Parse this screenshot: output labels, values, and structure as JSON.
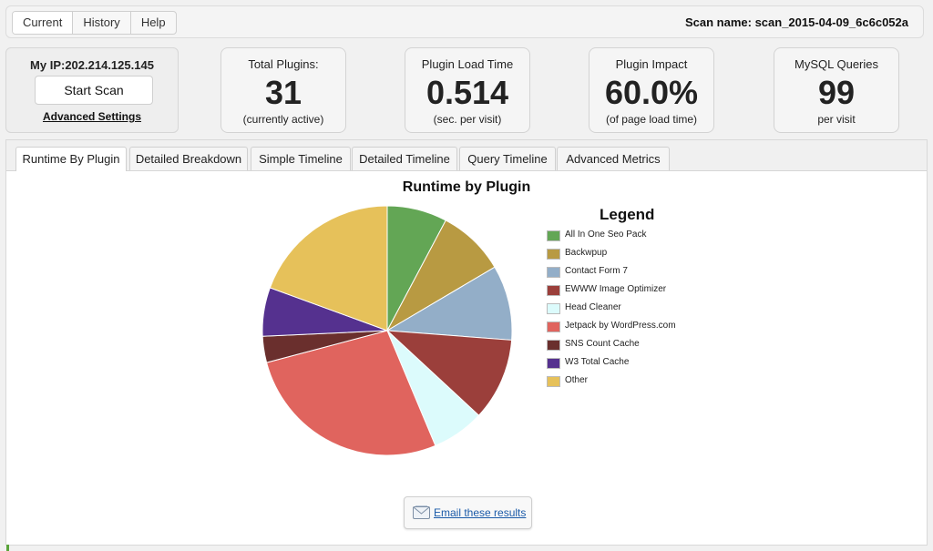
{
  "nav": {
    "items": [
      {
        "label": "Current",
        "active": true
      },
      {
        "label": "History",
        "active": false
      },
      {
        "label": "Help",
        "active": false
      }
    ]
  },
  "scan": {
    "name_label": "Scan name: scan_2015-04-09_6c6c052a"
  },
  "ipcard": {
    "ip_label": "My IP:202.214.125.145",
    "start_label": "Start Scan",
    "advanced_label": "Advanced Settings"
  },
  "stats": [
    {
      "title": "Total Plugins:",
      "value": "31",
      "sub": "(currently active)"
    },
    {
      "title": "Plugin Load Time",
      "value": "0.514",
      "sub": "(sec. per visit)"
    },
    {
      "title": "Plugin Impact",
      "value": "60.0%",
      "sub": "(of page load time)"
    },
    {
      "title": "MySQL Queries",
      "value": "99",
      "sub": "per visit"
    }
  ],
  "tabs": [
    {
      "label": "Runtime By Plugin",
      "active": true
    },
    {
      "label": "Detailed Breakdown",
      "active": false
    },
    {
      "label": "Simple Timeline",
      "active": false
    },
    {
      "label": "Detailed Timeline",
      "active": false
    },
    {
      "label": "Query Timeline",
      "active": false
    },
    {
      "label": "Advanced Metrics",
      "active": false
    }
  ],
  "email": {
    "label": "Email these results",
    "icon": "envelope-icon"
  },
  "chart_data": {
    "type": "pie",
    "title": "Runtime by Plugin",
    "legend_title": "Legend",
    "legend_position": "right",
    "categories": [
      "All In One Seo Pack",
      "Backwpup",
      "Contact Form 7",
      "EWWW Image Optimizer",
      "Head Cleaner",
      "Jetpack by WordPress.com",
      "SNS Count Cache",
      "W3 Total Cache",
      "Other"
    ],
    "values": [
      8,
      9,
      10,
      11,
      7,
      28,
      3.5,
      6.5,
      20
    ],
    "colors": [
      "#63a655",
      "#b89a42",
      "#93aec8",
      "#9b3f3b",
      "#dcfbfc",
      "#e0645e",
      "#6a2f2d",
      "#55318f",
      "#e6c15a"
    ]
  }
}
